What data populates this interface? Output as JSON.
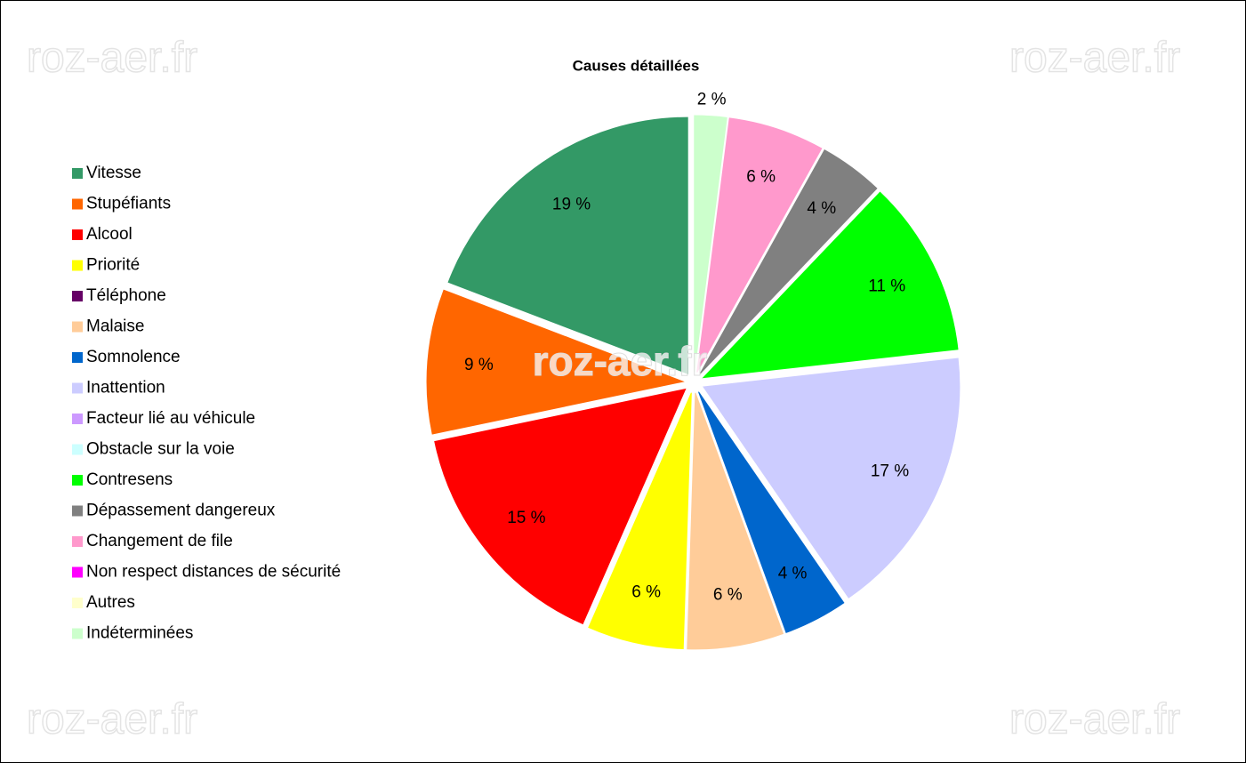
{
  "chart_data": {
    "type": "pie",
    "title": "Causes détaillées",
    "watermark": "roz-aer.fr",
    "categories": [
      "Vitesse",
      "Stupéfiants",
      "Alcool",
      "Priorité",
      "Téléphone",
      "Malaise",
      "Somnolence",
      "Inattention",
      "Facteur lié au véhicule",
      "Obstacle sur la voie",
      "Contresens",
      "Dépassement dangereux",
      "Changement de file",
      "Non respect distances de sécurité",
      "Autres",
      "Indéterminées"
    ],
    "values": [
      19,
      9,
      15,
      6,
      0,
      6,
      4,
      17,
      0,
      0,
      11,
      4,
      6,
      0,
      0,
      2
    ],
    "value_labels": [
      "19 %",
      "9 %",
      "15 %",
      "6 %",
      null,
      "6 %",
      "4 %",
      "17 %",
      null,
      null,
      "11 %",
      "4 %",
      "6 %",
      null,
      null,
      "2 %"
    ],
    "colors": [
      "#339966",
      "#ff6600",
      "#ff0000",
      "#ffff00",
      "#660066",
      "#ffcc99",
      "#0066cc",
      "#ccccff",
      "#cc99ff",
      "#ccffff",
      "#00ff00",
      "#808080",
      "#ff99cc",
      "#ff00ff",
      "#ffffcc",
      "#ccffcc"
    ],
    "legend": "left"
  }
}
